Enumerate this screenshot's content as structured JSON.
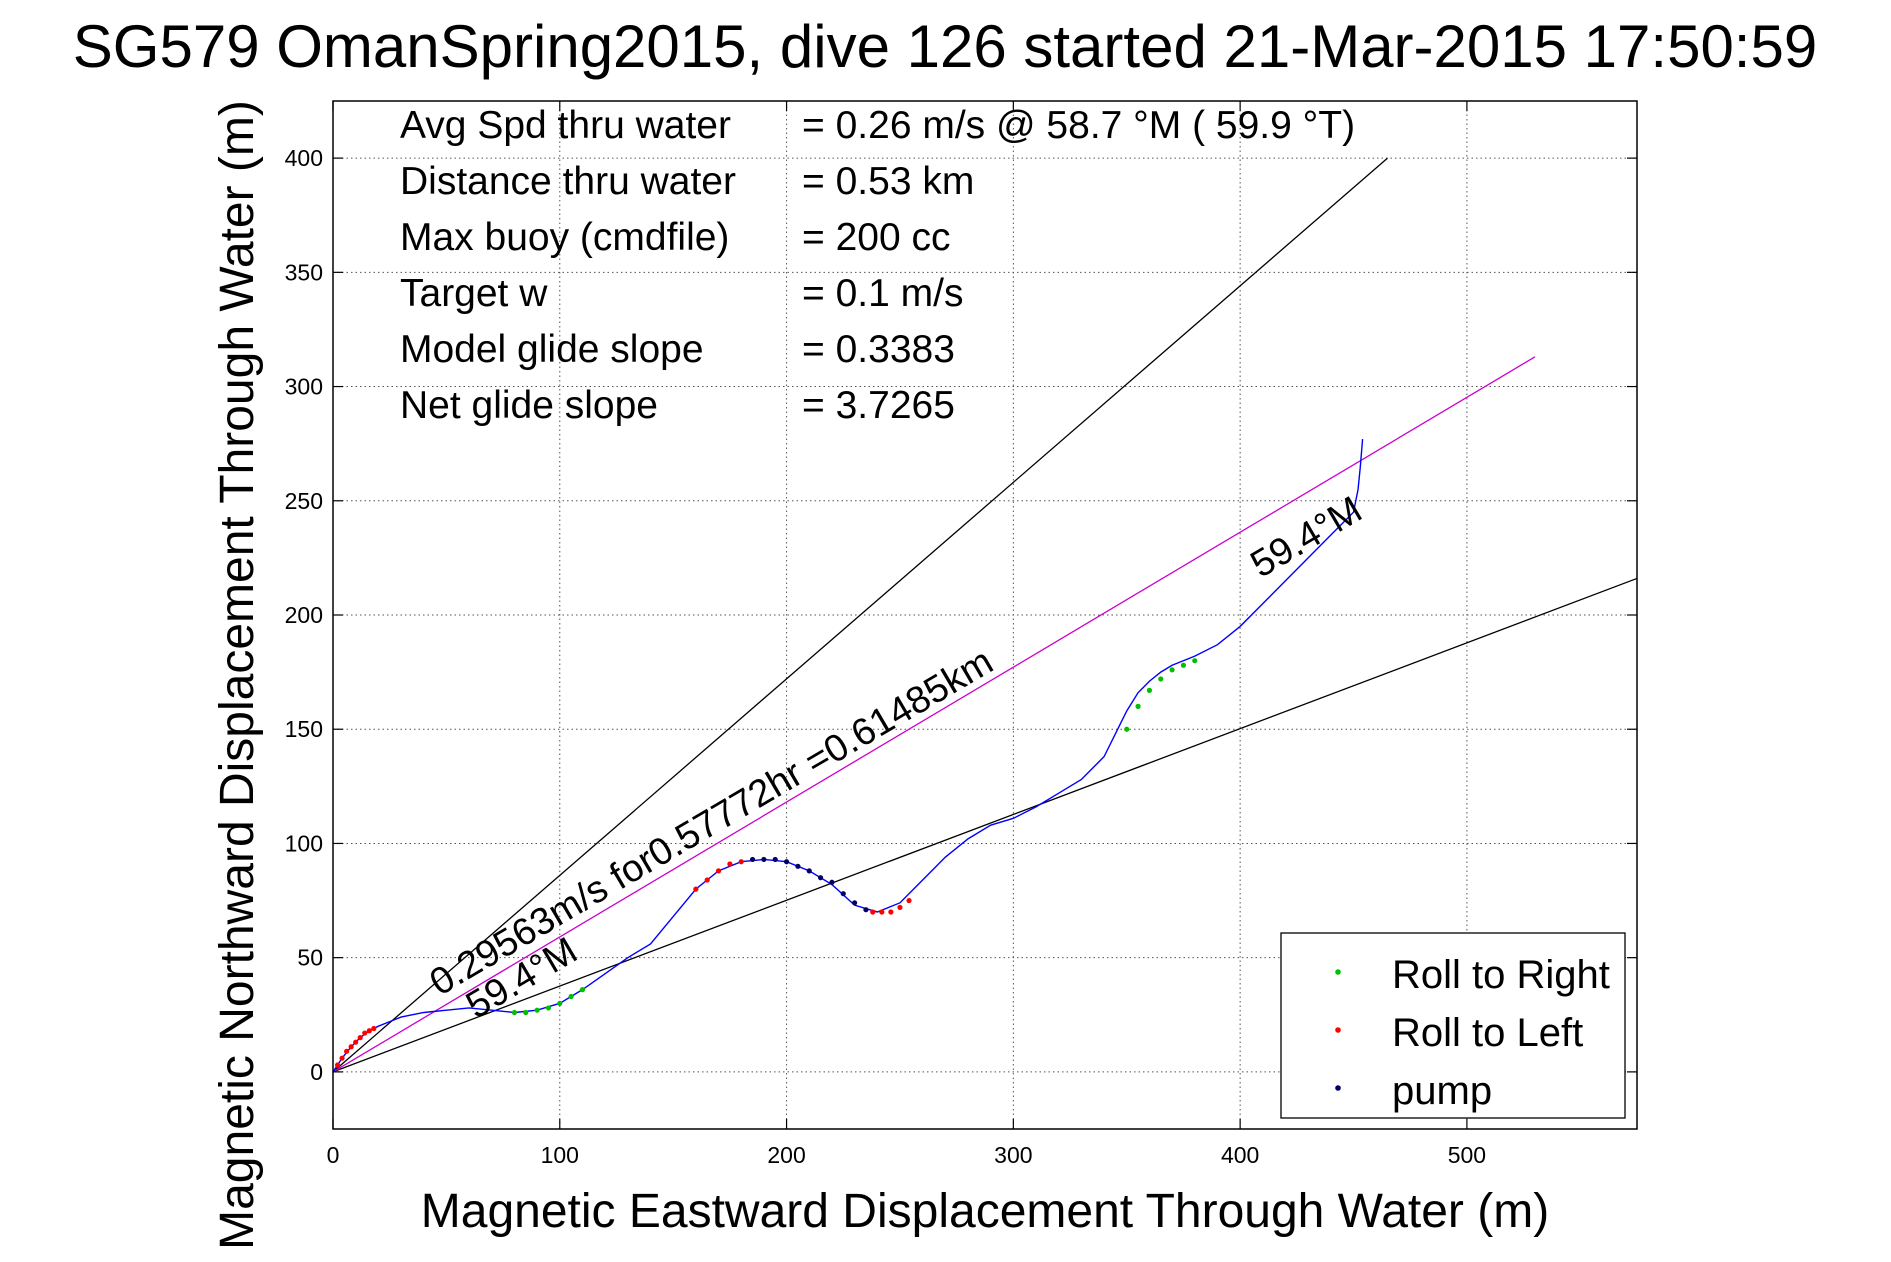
{
  "chart_data": {
    "type": "line",
    "title": "SG579 OmanSpring2015, dive 126 started 21-Mar-2015 17:50:59",
    "xlabel": "Magnetic Eastward Displacement Through Water (m)",
    "ylabel": "Magnetic Northward Displacement Through Water (m)",
    "xlim": [
      0,
      575
    ],
    "ylim": [
      -25,
      425
    ],
    "xticks": [
      0,
      100,
      200,
      300,
      400,
      500
    ],
    "yticks": [
      0,
      50,
      100,
      150,
      200,
      250,
      300,
      350,
      400
    ],
    "grid": true,
    "stats": [
      {
        "label": "Avg Spd thru water",
        "value": "=  0.26 m/s @  58.7 °M ( 59.9 °T)"
      },
      {
        "label": "Distance thru water",
        "value": "=  0.53 km"
      },
      {
        "label": "Max buoy (cmdfile)",
        "value": "= 200 cc"
      },
      {
        "label": "Target w",
        "value": "= 0.1 m/s"
      },
      {
        "label": "Model glide slope",
        "value": "= 0.3383"
      },
      {
        "label": "Net glide slope",
        "value": "= 3.7265"
      }
    ],
    "reference_lines": [
      {
        "color": "#000000",
        "x": [
          0,
          465
        ],
        "y": [
          0,
          400
        ]
      },
      {
        "color": "#000000",
        "x": [
          0,
          575
        ],
        "y": [
          0,
          216
        ]
      },
      {
        "color": "#cc00cc",
        "x": [
          0,
          530
        ],
        "y": [
          0,
          313
        ]
      }
    ],
    "track": {
      "color": "#0000ff",
      "x": [
        0,
        4,
        8,
        12,
        16,
        20,
        25,
        30,
        40,
        50,
        60,
        70,
        80,
        90,
        100,
        110,
        120,
        130,
        140,
        150,
        160,
        170,
        180,
        190,
        200,
        210,
        220,
        230,
        240,
        250,
        260,
        270,
        280,
        290,
        300,
        310,
        320,
        330,
        340,
        345,
        350,
        355,
        360,
        365,
        370,
        380,
        390,
        400,
        410,
        420,
        430,
        440,
        445,
        450,
        452,
        453,
        454
      ],
      "y": [
        0,
        6,
        11,
        15,
        18,
        20,
        22,
        24,
        26,
        27,
        28,
        27,
        26,
        27,
        30,
        36,
        43,
        50,
        56,
        68,
        80,
        88,
        92,
        93,
        92,
        88,
        82,
        73,
        70,
        74,
        84,
        94,
        102,
        108,
        111,
        116,
        122,
        128,
        138,
        148,
        158,
        166,
        171,
        175,
        178,
        182,
        187,
        195,
        205,
        215,
        225,
        235,
        240,
        245,
        255,
        265,
        277
      ]
    },
    "roll_to_right": {
      "color": "#00c000",
      "x": [
        80,
        85,
        90,
        95,
        100,
        105,
        110,
        350,
        355,
        360,
        365,
        370,
        375,
        380
      ],
      "y": [
        26,
        26,
        27,
        28,
        30,
        33,
        36,
        150,
        160,
        167,
        172,
        176,
        178,
        180
      ]
    },
    "roll_to_left": {
      "color": "#ff0000",
      "x": [
        2,
        4,
        6,
        8,
        10,
        12,
        14,
        16,
        18,
        160,
        165,
        170,
        175,
        180,
        238,
        242,
        246,
        250,
        254
      ],
      "y": [
        3,
        6,
        9,
        11,
        13,
        15,
        17,
        18,
        19,
        80,
        84,
        88,
        91,
        92,
        70,
        70,
        70,
        72,
        75
      ]
    },
    "pump": {
      "color": "#000066",
      "x": [
        185,
        190,
        195,
        200,
        205,
        210,
        215,
        220,
        225,
        230,
        235
      ],
      "y": [
        93,
        93,
        93,
        92,
        90,
        88,
        85,
        83,
        78,
        74,
        71
      ]
    },
    "annotations": [
      {
        "text": "0.29563m/s for0.57772hr =0.61485km",
        "x": 47,
        "y": 33,
        "angle": 30.5
      },
      {
        "text": "59.4°M",
        "x": 63,
        "y": 23,
        "angle": 30.5
      },
      {
        "text": "59.4°M",
        "x": 409,
        "y": 216,
        "angle": 30.5
      }
    ],
    "legend": {
      "position": "bottom-right",
      "entries": [
        {
          "label": "Roll to Right",
          "color": "#00c000"
        },
        {
          "label": "Roll to Left",
          "color": "#ff0000"
        },
        {
          "label": "pump",
          "color": "#000066"
        }
      ]
    }
  }
}
